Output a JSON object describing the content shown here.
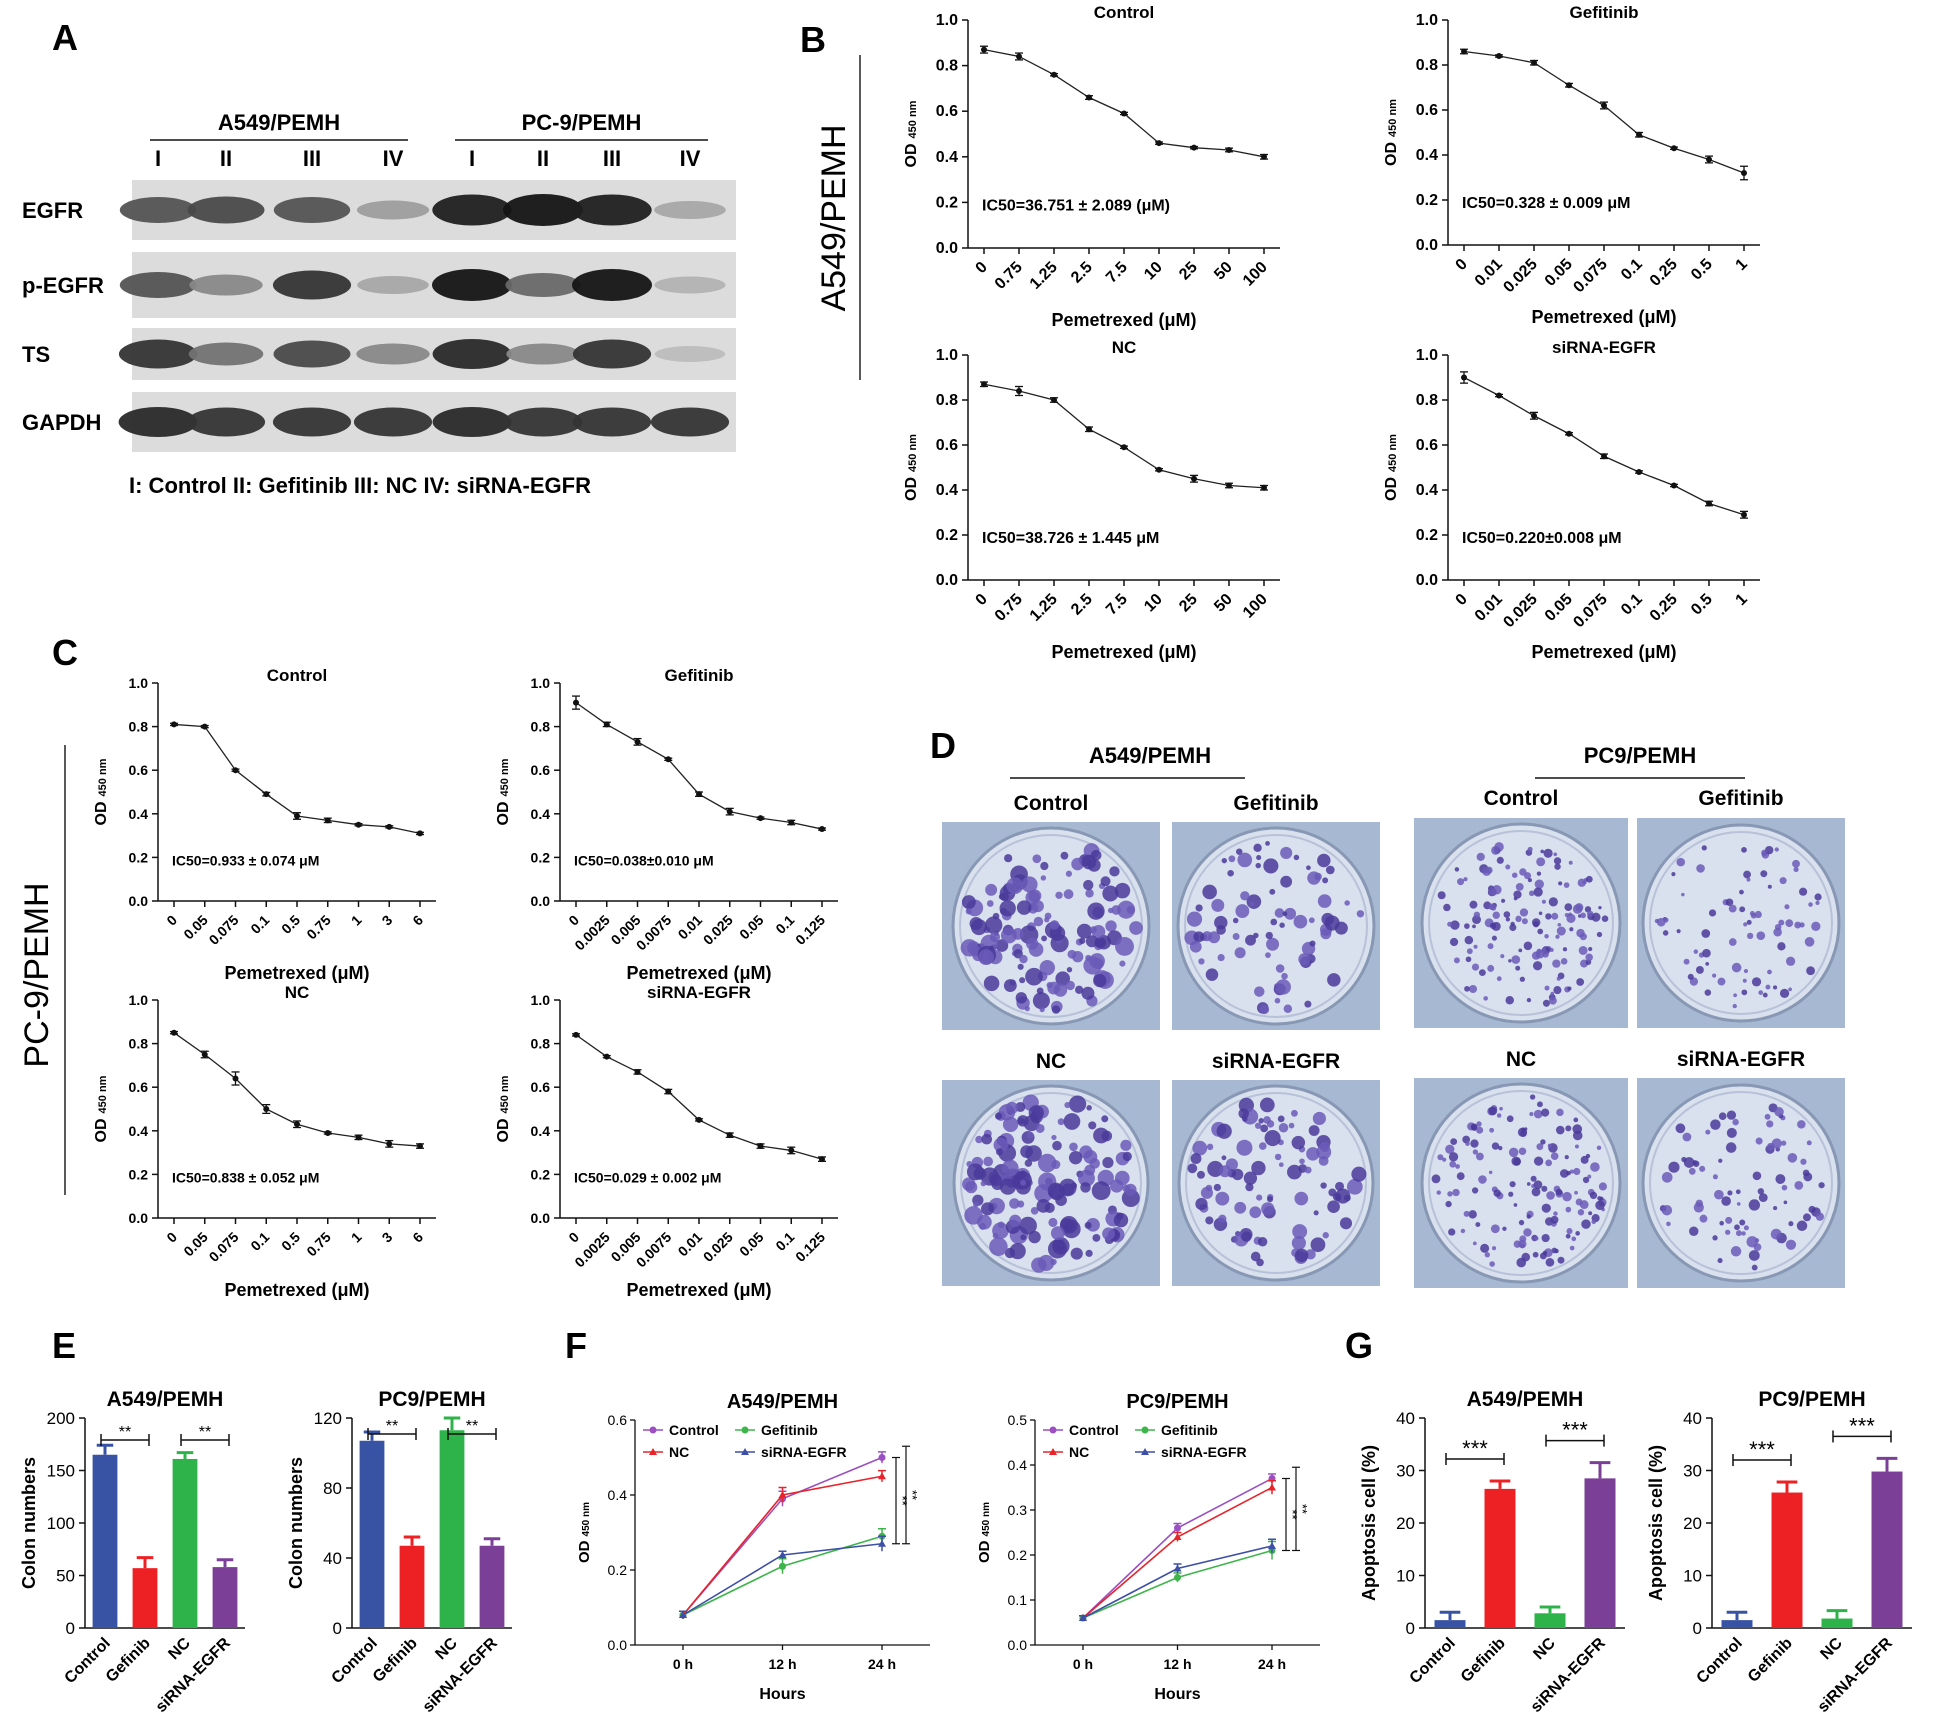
{
  "panel_letters": {
    "A": "A",
    "B": "B",
    "C": "C",
    "D": "D",
    "E": "E",
    "F": "F",
    "G": "G"
  },
  "western_blot": {
    "groups": [
      {
        "name": "A549/PEMH",
        "lanes": [
          "I",
          "II",
          "III",
          "IV"
        ]
      },
      {
        "name": "PC-9/PEMH",
        "lanes": [
          "I",
          "II",
          "III",
          "IV"
        ]
      }
    ],
    "rows": [
      "EGFR",
      "p-EGFR",
      "TS",
      "GAPDH"
    ],
    "intensity": {
      "EGFR": [
        0.7,
        0.75,
        0.7,
        0.35,
        0.95,
        1.0,
        0.95,
        0.3
      ],
      "p-EGFR": [
        0.7,
        0.45,
        0.85,
        0.3,
        1.0,
        0.6,
        1.0,
        0.25
      ],
      "TS": [
        0.85,
        0.55,
        0.75,
        0.45,
        0.9,
        0.45,
        0.85,
        0.2
      ],
      "GAPDH": [
        0.9,
        0.85,
        0.85,
        0.85,
        0.9,
        0.85,
        0.85,
        0.85
      ]
    },
    "legend": "I: Control  II: Gefitinib  III: NC  IV: siRNA-EGFR"
  },
  "side_labels": {
    "B": "A549/PEMH",
    "C": "PC-9/PEMH"
  },
  "chart_data": [
    {
      "id": "B1",
      "type": "line",
      "title": "Control",
      "xlabel": "Pemetrexed (μM)",
      "ylabel_main": "OD",
      "ylabel_sub": "450 nm",
      "categories": [
        "0",
        "0.75",
        "1.25",
        "2.5",
        "7.5",
        "10",
        "25",
        "50",
        "100"
      ],
      "values": [
        0.87,
        0.84,
        0.76,
        0.66,
        0.59,
        0.46,
        0.44,
        0.43,
        0.4
      ],
      "errors": [
        0.015,
        0.015,
        0.005,
        0.008,
        0.005,
        0.005,
        0.005,
        0.008,
        0.01
      ],
      "ylim": [
        0,
        1
      ],
      "yticks": [
        "0.0",
        "0.2",
        "0.4",
        "0.6",
        "0.8",
        "1.0"
      ],
      "annotation": "IC50=36.751 ± 2.089 (μM)"
    },
    {
      "id": "B2",
      "type": "line",
      "title": "Gefitinib",
      "xlabel": "Pemetrexed (μM)",
      "ylabel_main": "OD",
      "ylabel_sub": "450 nm",
      "categories": [
        "0",
        "0.01",
        "0.025",
        "0.05",
        "0.075",
        "0.1",
        "0.25",
        "0.5",
        "1"
      ],
      "values": [
        0.86,
        0.84,
        0.81,
        0.71,
        0.62,
        0.49,
        0.43,
        0.38,
        0.32
      ],
      "errors": [
        0.01,
        0.005,
        0.01,
        0.008,
        0.015,
        0.01,
        0.005,
        0.015,
        0.03
      ],
      "ylim": [
        0,
        1
      ],
      "yticks": [
        "0.0",
        "0.2",
        "0.4",
        "0.6",
        "0.8",
        "1.0"
      ],
      "annotation": "IC50=0.328 ± 0.009 μM"
    },
    {
      "id": "B3",
      "type": "line",
      "title": "NC",
      "xlabel": "Pemetrexed (μM)",
      "ylabel_main": "OD",
      "ylabel_sub": "450 nm",
      "categories": [
        "0",
        "0.75",
        "1.25",
        "2.5",
        "7.5",
        "10",
        "25",
        "50",
        "100"
      ],
      "values": [
        0.87,
        0.84,
        0.8,
        0.67,
        0.59,
        0.49,
        0.45,
        0.42,
        0.41
      ],
      "errors": [
        0.01,
        0.02,
        0.01,
        0.01,
        0.005,
        0.005,
        0.015,
        0.01,
        0.01
      ],
      "ylim": [
        0,
        1
      ],
      "yticks": [
        "0.0",
        "0.2",
        "0.4",
        "0.6",
        "0.8",
        "1.0"
      ],
      "annotation": "IC50=38.726 ± 1.445 μM"
    },
    {
      "id": "B4",
      "type": "line",
      "title": "siRNA-EGFR",
      "xlabel": "Pemetrexed (μM)",
      "ylabel_main": "OD",
      "ylabel_sub": "450 nm",
      "categories": [
        "0",
        "0.01",
        "0.025",
        "0.05",
        "0.075",
        "0.1",
        "0.25",
        "0.5",
        "1"
      ],
      "values": [
        0.9,
        0.82,
        0.73,
        0.65,
        0.55,
        0.48,
        0.42,
        0.34,
        0.29
      ],
      "errors": [
        0.025,
        0.005,
        0.015,
        0.005,
        0.01,
        0.005,
        0.005,
        0.01,
        0.015
      ],
      "ylim": [
        0,
        1
      ],
      "yticks": [
        "0.0",
        "0.2",
        "0.4",
        "0.6",
        "0.8",
        "1.0"
      ],
      "annotation": "IC50=0.220±0.008 μM"
    },
    {
      "id": "C1",
      "type": "line",
      "title": "Control",
      "xlabel": "Pemetrexed (μM)",
      "ylabel_main": "OD",
      "ylabel_sub": "450 nm",
      "categories": [
        "0",
        "0.05",
        "0.075",
        "0.1",
        "0.5",
        "0.75",
        "1",
        "3",
        "6"
      ],
      "values": [
        0.81,
        0.8,
        0.6,
        0.49,
        0.39,
        0.37,
        0.35,
        0.34,
        0.31
      ],
      "errors": [
        0.005,
        0.005,
        0.005,
        0.008,
        0.015,
        0.01,
        0.005,
        0.005,
        0.005
      ],
      "ylim": [
        0,
        1
      ],
      "yticks": [
        "0.0",
        "0.2",
        "0.4",
        "0.6",
        "0.8",
        "1.0"
      ],
      "annotation": "IC50=0.933 ± 0.074 μM"
    },
    {
      "id": "C2",
      "type": "line",
      "title": "Gefitinib",
      "xlabel": "Pemetrexed (μM)",
      "ylabel_main": "OD",
      "ylabel_sub": "450 nm",
      "categories": [
        "0",
        "0.0025",
        "0.005",
        "0.0075",
        "0.01",
        "0.025",
        "0.05",
        "0.1",
        "0.125"
      ],
      "values": [
        0.91,
        0.81,
        0.73,
        0.65,
        0.49,
        0.41,
        0.38,
        0.36,
        0.33
      ],
      "errors": [
        0.03,
        0.01,
        0.015,
        0.005,
        0.01,
        0.015,
        0.005,
        0.01,
        0.005
      ],
      "ylim": [
        0,
        1
      ],
      "yticks": [
        "0.0",
        "0.2",
        "0.4",
        "0.6",
        "0.8",
        "1.0"
      ],
      "annotation": "IC50=0.038±0.010 μM"
    },
    {
      "id": "C3",
      "type": "line",
      "title": "NC",
      "xlabel": "Pemetrexed (μM)",
      "ylabel_main": "OD",
      "ylabel_sub": "450 nm",
      "categories": [
        "0",
        "0.05",
        "0.075",
        "0.1",
        "0.5",
        "0.75",
        "1",
        "3",
        "6"
      ],
      "values": [
        0.85,
        0.75,
        0.64,
        0.5,
        0.43,
        0.39,
        0.37,
        0.34,
        0.33
      ],
      "errors": [
        0.005,
        0.015,
        0.03,
        0.02,
        0.015,
        0.005,
        0.01,
        0.015,
        0.01
      ],
      "ylim": [
        0,
        1
      ],
      "yticks": [
        "0.0",
        "0.2",
        "0.4",
        "0.6",
        "0.8",
        "1.0"
      ],
      "annotation": "IC50=0.838 ±  0.052 μM"
    },
    {
      "id": "C4",
      "type": "line",
      "title": "siRNA-EGFR",
      "xlabel": "Pemetrexed (μM)",
      "ylabel_main": "OD",
      "ylabel_sub": "450 nm",
      "categories": [
        "0",
        "0.0025",
        "0.005",
        "0.0075",
        "0.01",
        "0.025",
        "0.05",
        "0.1",
        "0.125"
      ],
      "values": [
        0.84,
        0.74,
        0.67,
        0.58,
        0.45,
        0.38,
        0.33,
        0.31,
        0.27
      ],
      "errors": [
        0.005,
        0.005,
        0.01,
        0.01,
        0.005,
        0.01,
        0.01,
        0.015,
        0.01
      ],
      "ylim": [
        0,
        1
      ],
      "yticks": [
        "0.0",
        "0.2",
        "0.4",
        "0.6",
        "0.8",
        "1.0"
      ],
      "annotation": "IC50=0.029 ± 0.002 μM"
    },
    {
      "id": "E1",
      "type": "bar",
      "title": "A549/PEMH",
      "ylabel": "Colon numbers",
      "categories": [
        "Control",
        "Gefinib",
        "NC",
        "siRNA-EGFR"
      ],
      "values": [
        165,
        57,
        161,
        58
      ],
      "errors": [
        9,
        10,
        6,
        7
      ],
      "colors": [
        "#3953a4",
        "#ed2024",
        "#2db34a",
        "#7b3f98"
      ],
      "ylim": [
        0,
        200
      ],
      "yticks": [
        "0",
        "50",
        "100",
        "150",
        "200"
      ],
      "significance": [
        {
          "from": 0,
          "to": 1,
          "label": "**"
        },
        {
          "from": 2,
          "to": 3,
          "label": "**"
        }
      ]
    },
    {
      "id": "E2",
      "type": "bar",
      "title": "PC9/PEMH",
      "ylabel": "Colon numbers",
      "categories": [
        "Control",
        "Gefinib",
        "NC",
        "siRNA-EGFR"
      ],
      "values": [
        107,
        47,
        113,
        47
      ],
      "errors": [
        5,
        5,
        7,
        4
      ],
      "colors": [
        "#3953a4",
        "#ed2024",
        "#2db34a",
        "#7b3f98"
      ],
      "ylim": [
        0,
        120
      ],
      "yticks": [
        "0",
        "40",
        "80",
        "120"
      ],
      "significance": [
        {
          "from": 0,
          "to": 1,
          "label": "**"
        },
        {
          "from": 2,
          "to": 3,
          "label": "**"
        }
      ]
    },
    {
      "id": "F1",
      "type": "line",
      "title": "A549/PEMH",
      "xlabel": "Hours",
      "ylabel_main": "OD",
      "ylabel_sub": "450 nm",
      "categories": [
        "0 h",
        "12 h",
        "24 h"
      ],
      "ylim": [
        0,
        0.6
      ],
      "yticks": [
        "0.0",
        "0.2",
        "0.4",
        "0.6"
      ],
      "series": [
        {
          "name": "Control",
          "color": "#9b4fc1",
          "marker": "circle",
          "values": [
            0.08,
            0.39,
            0.5
          ],
          "errors": [
            0.01,
            0.02,
            0.015
          ]
        },
        {
          "name": "Gefitinib",
          "color": "#3db54a",
          "marker": "circle",
          "values": [
            0.08,
            0.21,
            0.29
          ],
          "errors": [
            0.01,
            0.02,
            0.02
          ]
        },
        {
          "name": "NC",
          "color": "#e8232a",
          "marker": "triangle",
          "values": [
            0.08,
            0.4,
            0.45
          ],
          "errors": [
            0.01,
            0.02,
            0.015
          ]
        },
        {
          "name": "siRNA-EGFR",
          "color": "#3d4fa6",
          "marker": "triangle",
          "values": [
            0.08,
            0.24,
            0.27
          ],
          "errors": [
            0.01,
            0.01,
            0.02
          ]
        }
      ],
      "significance": [
        "**",
        "**"
      ]
    },
    {
      "id": "F2",
      "type": "line",
      "title": "PC9/PEMH",
      "xlabel": "Hours",
      "ylabel_main": "OD",
      "ylabel_sub": "450 nm",
      "categories": [
        "0 h",
        "12 h",
        "24 h"
      ],
      "ylim": [
        0,
        0.5
      ],
      "yticks": [
        "0.0",
        "0.1",
        "0.2",
        "0.3",
        "0.4",
        "0.5"
      ],
      "series": [
        {
          "name": "Control",
          "color": "#9b4fc1",
          "marker": "circle",
          "values": [
            0.06,
            0.26,
            0.37
          ],
          "errors": [
            0.005,
            0.01,
            0.01
          ]
        },
        {
          "name": "Gefitinib",
          "color": "#3db54a",
          "marker": "circle",
          "values": [
            0.06,
            0.15,
            0.21
          ],
          "errors": [
            0.005,
            0.01,
            0.02
          ]
        },
        {
          "name": "NC",
          "color": "#e8232a",
          "marker": "triangle",
          "values": [
            0.06,
            0.24,
            0.35
          ],
          "errors": [
            0.005,
            0.01,
            0.015
          ]
        },
        {
          "name": "siRNA-EGFR",
          "color": "#3d4fa6",
          "marker": "triangle",
          "values": [
            0.06,
            0.17,
            0.22
          ],
          "errors": [
            0.005,
            0.01,
            0.015
          ]
        }
      ],
      "significance": [
        "**",
        "**"
      ]
    },
    {
      "id": "G1",
      "type": "bar",
      "title": "A549/PEMH",
      "ylabel": "Apoptosis cell (%)",
      "categories": [
        "Control",
        "Gefinib",
        "NC",
        "siRNA-EGFR"
      ],
      "values": [
        1.5,
        26.5,
        2.8,
        28.5
      ],
      "errors": [
        1.5,
        1.5,
        1.2,
        3
      ],
      "colors": [
        "#3953a4",
        "#ed2024",
        "#2db34a",
        "#7b3f98"
      ],
      "ylim": [
        0,
        40
      ],
      "yticks": [
        "0",
        "10",
        "20",
        "30",
        "40"
      ],
      "significance": [
        {
          "from": 0,
          "to": 1,
          "label": "***"
        },
        {
          "from": 2,
          "to": 3,
          "label": "***"
        }
      ]
    },
    {
      "id": "G2",
      "type": "bar",
      "title": "PC9/PEMH",
      "ylabel": "Apoptosis cell (%)",
      "categories": [
        "Control",
        "Gefinib",
        "NC",
        "siRNA-EGFR"
      ],
      "values": [
        1.5,
        25.8,
        1.8,
        29.8
      ],
      "errors": [
        1.5,
        2,
        1.5,
        2.5
      ],
      "colors": [
        "#3953a4",
        "#ed2024",
        "#2db34a",
        "#7b3f98"
      ],
      "ylim": [
        0,
        40
      ],
      "yticks": [
        "0",
        "10",
        "20",
        "30",
        "40"
      ],
      "significance": [
        {
          "from": 0,
          "to": 1,
          "label": "***"
        },
        {
          "from": 2,
          "to": 3,
          "label": "***"
        }
      ]
    }
  ],
  "colony": {
    "groups": [
      {
        "name": "A549/PEMH"
      },
      {
        "name": "PC9/PEMH"
      }
    ],
    "plates": [
      {
        "label": "Control",
        "density": 0.9,
        "size": 1.0
      },
      {
        "label": "Gefitinib",
        "density": 0.35,
        "size": 0.8
      },
      {
        "label": "Control",
        "density": 1.0,
        "size": 0.45
      },
      {
        "label": "Gefitinib",
        "density": 0.35,
        "size": 0.45
      },
      {
        "label": "NC",
        "density": 1.0,
        "size": 1.0
      },
      {
        "label": "siRNA-EGFR",
        "density": 0.5,
        "size": 0.85
      },
      {
        "label": "NC",
        "density": 1.0,
        "size": 0.45
      },
      {
        "label": "siRNA-EGFR",
        "density": 0.4,
        "size": 0.55
      }
    ]
  }
}
